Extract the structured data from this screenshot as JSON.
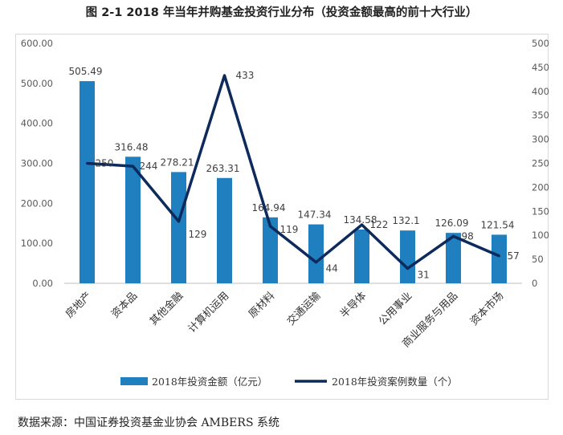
{
  "title": "图 2-1 2018 年当年并购基金投资行业分布（投资金额最高的前十大行业）",
  "source": "数据来源：中国证券投资基金业协会 AMBERS 系统",
  "chart_data": {
    "type": "bar",
    "categories": [
      "房地产",
      "资本品",
      "其他金融",
      "计算机运用",
      "原材料",
      "交通运输",
      "半导体",
      "公用事业",
      "商业服务与用品",
      "资本市场"
    ],
    "series": [
      {
        "name": "2018年投资金额（亿元）",
        "type": "bar",
        "axis": "left",
        "color": "#1f7fbf",
        "values": [
          505.49,
          316.48,
          278.21,
          263.31,
          164.94,
          147.34,
          134.58,
          132.1,
          126.09,
          121.54
        ],
        "labels": [
          "505.49",
          "316.48",
          "278.21",
          "263.31",
          "164.94",
          "147.34",
          "134.58",
          "132.1",
          "126.09",
          "121.54"
        ]
      },
      {
        "name": "2018年投资案例数量（个）",
        "type": "line",
        "axis": "right",
        "color": "#0d2a5c",
        "values": [
          250,
          244,
          129,
          433,
          119,
          44,
          122,
          31,
          98,
          57
        ],
        "labels": [
          "250",
          "244",
          "129",
          "433",
          "119",
          "44",
          "122",
          "31",
          "98",
          "57"
        ]
      }
    ],
    "left_axis": {
      "ylim": [
        0,
        600
      ],
      "ticks": [
        0,
        100,
        200,
        300,
        400,
        500,
        600
      ],
      "tick_labels": [
        "0.00",
        "100.00",
        "200.00",
        "300.00",
        "400.00",
        "500.00",
        "600.00"
      ]
    },
    "right_axis": {
      "ylim": [
        0,
        500
      ],
      "ticks": [
        0,
        50,
        100,
        150,
        200,
        250,
        300,
        350,
        400,
        450,
        500
      ],
      "tick_labels": [
        "0",
        "50",
        "100",
        "150",
        "200",
        "250",
        "300",
        "350",
        "400",
        "450",
        "500"
      ]
    },
    "grid": false,
    "legend_position": "bottom"
  }
}
